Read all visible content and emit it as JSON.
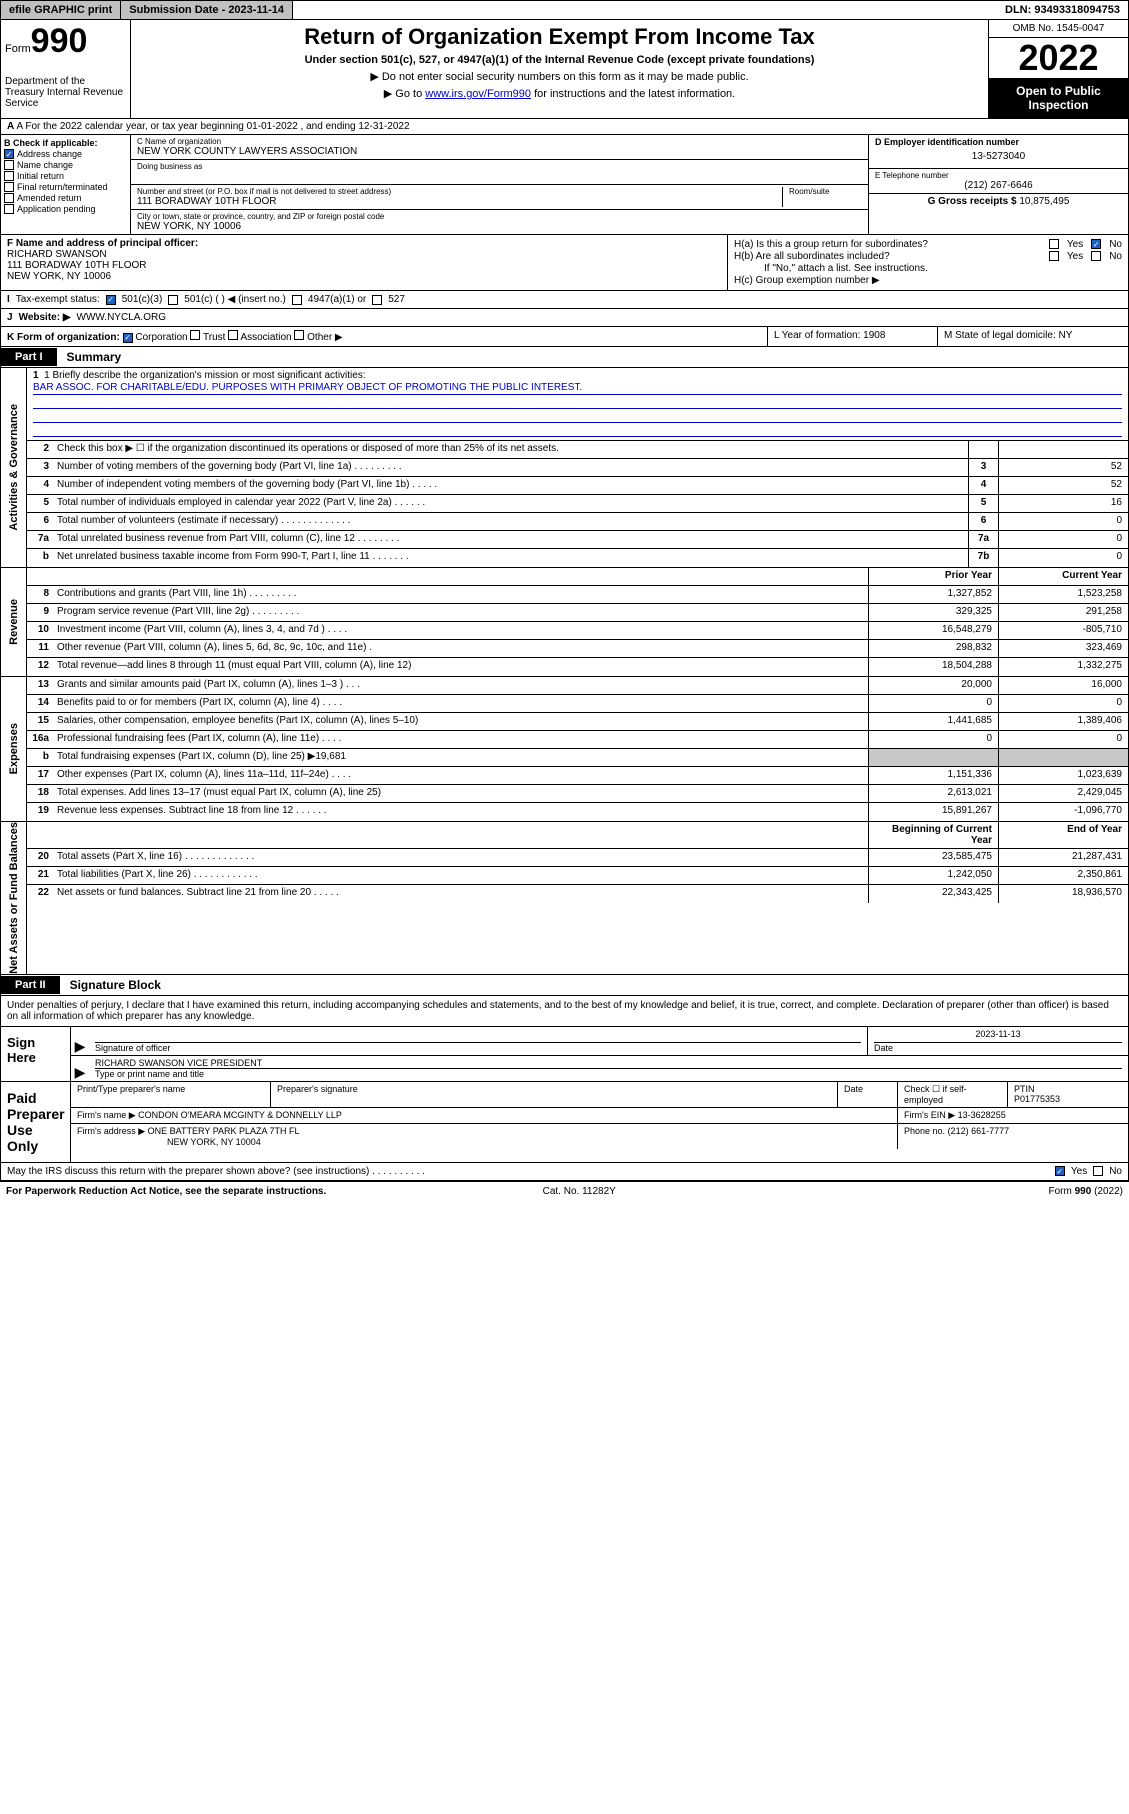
{
  "topbar": {
    "efile": "efile GRAPHIC print",
    "sub_label": "Submission Date - 2023-11-14",
    "dln": "DLN: 93493318094753"
  },
  "header": {
    "form_prefix": "Form",
    "form_no": "990",
    "dept": "Department of the Treasury\nInternal Revenue Service",
    "title": "Return of Organization Exempt From Income Tax",
    "subtitle": "Under section 501(c), 527, or 4947(a)(1) of the Internal Revenue Code (except private foundations)",
    "note1": "▶ Do not enter social security numbers on this form as it may be made public.",
    "note2_pre": "▶ Go to ",
    "note2_link": "www.irs.gov/Form990",
    "note2_post": " for instructions and the latest information.",
    "omb": "OMB No. 1545-0047",
    "year": "2022",
    "open": "Open to Public Inspection"
  },
  "row_a": "A For the 2022 calendar year, or tax year beginning 01-01-2022   , and ending 12-31-2022",
  "col_b": {
    "title": "B Check if applicable:",
    "items": [
      "Address change",
      "Name change",
      "Initial return",
      "Final return/terminated",
      "Amended return",
      "Application pending"
    ],
    "checked_idx": 0
  },
  "org": {
    "c_label": "C Name of organization",
    "name": "NEW YORK COUNTY LAWYERS ASSOCIATION",
    "dba_label": "Doing business as",
    "addr_label": "Number and street (or P.O. box if mail is not delivered to street address)",
    "room_label": "Room/suite",
    "street": "111 BORADWAY 10TH FLOOR",
    "city_label": "City or town, state or province, country, and ZIP or foreign postal code",
    "city": "NEW YORK, NY  10006"
  },
  "right": {
    "d_label": "D Employer identification number",
    "ein": "13-5273040",
    "e_label": "E Telephone number",
    "phone": "(212) 267-6646",
    "g_label": "G Gross receipts $",
    "gross": "10,875,495"
  },
  "officer": {
    "f_label": "F Name and address of principal officer:",
    "name": "RICHARD SWANSON",
    "addr1": "111 BORADWAY 10TH FLOOR",
    "addr2": "NEW YORK, NY  10006"
  },
  "ha": {
    "a": "H(a)  Is this a group return for subordinates?",
    "b": "H(b)  Are all subordinates included?",
    "b_note": "If \"No,\" attach a list. See instructions.",
    "c": "H(c)  Group exemption number ▶",
    "yes": "Yes",
    "no": "No"
  },
  "status": {
    "i": "I",
    "label": "Tax-exempt status:",
    "opts": [
      "501(c)(3)",
      "501(c) (  ) ◀ (insert no.)",
      "4947(a)(1) or",
      "527"
    ],
    "checked_idx": 0
  },
  "website": {
    "j": "J",
    "label": "Website: ▶",
    "url": "WWW.NYCLA.ORG"
  },
  "k": {
    "label": "K Form of organization:",
    "opts": [
      "Corporation",
      "Trust",
      "Association",
      "Other ▶"
    ],
    "checked_idx": 0
  },
  "lm": {
    "l": "L Year of formation: 1908",
    "m": "M State of legal domicile: NY"
  },
  "part1": {
    "tab": "Part I",
    "title": "Summary"
  },
  "mission": {
    "q": "1  Briefly describe the organization's mission or most significant activities:",
    "text": "BAR ASSOC. FOR CHARITABLE/EDU. PURPOSES WITH PRIMARY OBJECT OF PROMOTING THE PUBLIC INTEREST."
  },
  "gov_lines": [
    {
      "n": "2",
      "d": "Check this box ▶ ☐  if the organization discontinued its operations or disposed of more than 25% of its net assets.",
      "box": "",
      "v": ""
    },
    {
      "n": "3",
      "d": "Number of voting members of the governing body (Part VI, line 1a)  .   .   .   .   .   .   .   .   .",
      "box": "3",
      "v": "52"
    },
    {
      "n": "4",
      "d": "Number of independent voting members of the governing body (Part VI, line 1b)  .   .   .   .   .",
      "box": "4",
      "v": "52"
    },
    {
      "n": "5",
      "d": "Total number of individuals employed in calendar year 2022 (Part V, line 2a)  .   .   .   .   .   .",
      "box": "5",
      "v": "16"
    },
    {
      "n": "6",
      "d": "Total number of volunteers (estimate if necessary)  .   .   .   .   .   .   .   .   .   .   .   .   .",
      "box": "6",
      "v": "0"
    },
    {
      "n": "7a",
      "d": "Total unrelated business revenue from Part VIII, column (C), line 12  .   .   .   .   .   .   .   .",
      "box": "7a",
      "v": "0"
    },
    {
      "n": "b",
      "d": "Net unrelated business taxable income from Form 990-T, Part I, line 11  .   .   .   .   .   .   .",
      "box": "7b",
      "v": "0"
    }
  ],
  "rev_hdr": {
    "prior": "Prior Year",
    "curr": "Current Year"
  },
  "rev_lines": [
    {
      "n": "8",
      "d": "Contributions and grants (Part VIII, line 1h)  .   .   .   .   .   .   .   .   .",
      "p": "1,327,852",
      "c": "1,523,258"
    },
    {
      "n": "9",
      "d": "Program service revenue (Part VIII, line 2g)  .   .   .   .   .   .   .   .   .",
      "p": "329,325",
      "c": "291,258"
    },
    {
      "n": "10",
      "d": "Investment income (Part VIII, column (A), lines 3, 4, and 7d )  .   .   .   .",
      "p": "16,548,279",
      "c": "-805,710"
    },
    {
      "n": "11",
      "d": "Other revenue (Part VIII, column (A), lines 5, 6d, 8c, 9c, 10c, and 11e)  .",
      "p": "298,832",
      "c": "323,469"
    },
    {
      "n": "12",
      "d": "Total revenue—add lines 8 through 11 (must equal Part VIII, column (A), line 12)",
      "p": "18,504,288",
      "c": "1,332,275"
    }
  ],
  "exp_lines": [
    {
      "n": "13",
      "d": "Grants and similar amounts paid (Part IX, column (A), lines 1–3 )  .   .   .",
      "p": "20,000",
      "c": "16,000"
    },
    {
      "n": "14",
      "d": "Benefits paid to or for members (Part IX, column (A), line 4)  .   .   .   .",
      "p": "0",
      "c": "0"
    },
    {
      "n": "15",
      "d": "Salaries, other compensation, employee benefits (Part IX, column (A), lines 5–10)",
      "p": "1,441,685",
      "c": "1,389,406"
    },
    {
      "n": "16a",
      "d": "Professional fundraising fees (Part IX, column (A), line 11e)  .   .   .   .",
      "p": "0",
      "c": "0"
    },
    {
      "n": "b",
      "d": "Total fundraising expenses (Part IX, column (D), line 25) ▶19,681",
      "p": "",
      "c": "",
      "shade": true
    },
    {
      "n": "17",
      "d": "Other expenses (Part IX, column (A), lines 11a–11d, 11f–24e)  .   .   .   .",
      "p": "1,151,336",
      "c": "1,023,639"
    },
    {
      "n": "18",
      "d": "Total expenses. Add lines 13–17 (must equal Part IX, column (A), line 25)",
      "p": "2,613,021",
      "c": "2,429,045"
    },
    {
      "n": "19",
      "d": "Revenue less expenses. Subtract line 18 from line 12  .   .   .   .   .   .",
      "p": "15,891,267",
      "c": "-1,096,770"
    }
  ],
  "na_hdr": {
    "beg": "Beginning of Current Year",
    "end": "End of Year"
  },
  "na_lines": [
    {
      "n": "20",
      "d": "Total assets (Part X, line 16)  .   .   .   .   .   .   .   .   .   .   .   .   .",
      "p": "23,585,475",
      "c": "21,287,431"
    },
    {
      "n": "21",
      "d": "Total liabilities (Part X, line 26)  .   .   .   .   .   .   .   .   .   .   .   .",
      "p": "1,242,050",
      "c": "2,350,861"
    },
    {
      "n": "22",
      "d": "Net assets or fund balances. Subtract line 21 from line 20  .   .   .   .   .",
      "p": "22,343,425",
      "c": "18,936,570"
    }
  ],
  "part2": {
    "tab": "Part II",
    "title": "Signature Block"
  },
  "sig_intro": "Under penalties of perjury, I declare that I have examined this return, including accompanying schedules and statements, and to the best of my knowledge and belief, it is true, correct, and complete. Declaration of preparer (other than officer) is based on all information of which preparer has any knowledge.",
  "sign": {
    "here": "Sign Here",
    "sig_label": "Signature of officer",
    "date_label": "Date",
    "date": "2023-11-13",
    "name": "RICHARD SWANSON  VICE PRESIDENT",
    "name_label": "Type or print name and title"
  },
  "paid": {
    "title": "Paid Preparer Use Only",
    "h_name": "Print/Type preparer's name",
    "h_sig": "Preparer's signature",
    "h_date": "Date",
    "h_check": "Check ☐ if self-employed",
    "h_ptin": "PTIN",
    "ptin": "P01775353",
    "firm_label": "Firm's name    ▶",
    "firm": "CONDON O'MEARA MCGINTY & DONNELLY LLP",
    "ein_label": "Firm's EIN ▶",
    "ein": "13-3628255",
    "addr_label": "Firm's address ▶",
    "addr1": "ONE BATTERY PARK PLAZA 7TH FL",
    "addr2": "NEW YORK, NY  10004",
    "phone_label": "Phone no.",
    "phone": "(212) 661-7777"
  },
  "discuss": {
    "q": "May the IRS discuss this return with the preparer shown above? (see instructions)  .   .   .   .   .   .   .   .   .   .",
    "yes": "Yes",
    "no": "No"
  },
  "footer": {
    "left": "For Paperwork Reduction Act Notice, see the separate instructions.",
    "mid": "Cat. No. 11282Y",
    "right": "Form 990 (2022)"
  },
  "vlabels": {
    "gov": "Activities & Governance",
    "rev": "Revenue",
    "exp": "Expenses",
    "na": "Net Assets or Fund Balances"
  }
}
